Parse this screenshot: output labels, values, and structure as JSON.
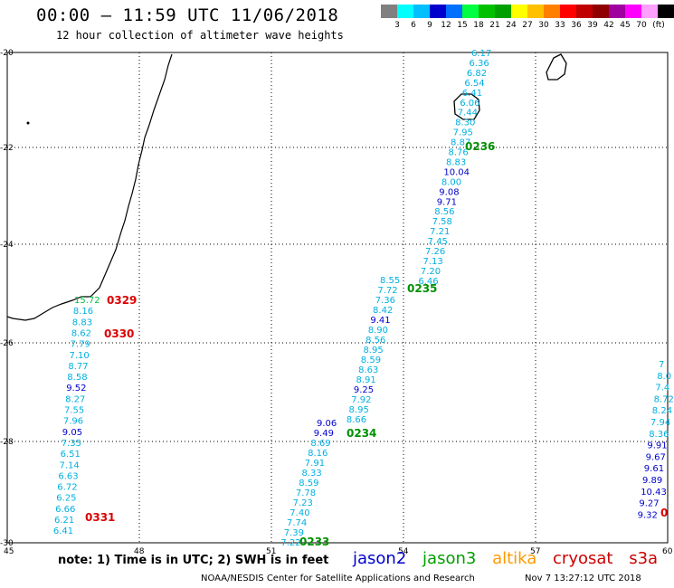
{
  "title": "00:00 – 11:59 UTC 11/06/2018",
  "subtitle": "12 hour collection of altimeter wave heights",
  "scale": {
    "unit": "(ft)",
    "colors": [
      "#808080",
      "#00ffff",
      "#00bfff",
      "#0000cd",
      "#0070ff",
      "#00ff40",
      "#00c000",
      "#00a000",
      "#ffff00",
      "#ffc000",
      "#ff8000",
      "#ff0000",
      "#c00000",
      "#900000",
      "#a000a0",
      "#ff00ff",
      "#ffa0ff",
      "#000000"
    ],
    "labels": [
      "3",
      "6",
      "9",
      "12",
      "15",
      "18",
      "21",
      "24",
      "27",
      "30",
      "33",
      "36",
      "39",
      "42",
      "45",
      "70"
    ]
  },
  "map": {
    "lon_ticks": [
      "45",
      "48",
      "51",
      "54",
      "57",
      "60"
    ],
    "lat_ticks": [
      "-20",
      "-22",
      "-24",
      "-26",
      "-28",
      "-30"
    ]
  },
  "tracks": {
    "t0236": {
      "time": "0236",
      "values": [
        "6.17",
        "6.36",
        "6.82",
        "6.54",
        "6.41",
        "6.06",
        "7.44",
        "8.30",
        "7.95",
        "8.87",
        "8.76",
        "8.83",
        "10.04",
        "8.00",
        "9.08",
        "9.71",
        "8.56",
        "7.58",
        "7.21",
        "7.45",
        "7.26",
        "7.13",
        "7.20",
        "6.46"
      ]
    },
    "t0235": {
      "time": "0235",
      "values": [
        "8.55",
        "7.72",
        "7.36",
        "8.42",
        "9.41",
        "8.90",
        "8.56",
        "8.95",
        "8.59",
        "8.63",
        "8.91",
        "9.25",
        "7.92",
        "8.95",
        "8.66"
      ]
    },
    "t0234": {
      "time": "0234",
      "values": [
        "9.06",
        "9.49",
        "8.69",
        "8.16",
        "7.91",
        "8.33",
        "8.59",
        "7.78",
        "7.23",
        "7.40",
        "7.74",
        "7.39",
        "7.22"
      ]
    },
    "t0233": {
      "time": "0233"
    },
    "t0329": {
      "time": "0329",
      "values": [
        "15.72",
        "8.16",
        "8.83",
        "8.62",
        "7.79",
        "7.10",
        "8.77",
        "8.58",
        "9.52",
        "8.27",
        "7.55",
        "7.96",
        "9.05",
        "7.35",
        "6.51",
        "7.14",
        "6.63",
        "6.72",
        "6.25",
        "6.66",
        "6.21",
        "6.41"
      ]
    },
    "t0330": {
      "time": "0330"
    },
    "t0331": {
      "time": "0331"
    },
    "east": {
      "values": [
        "7",
        "8.0",
        "7.4",
        "8.72",
        "8.24",
        "7.94",
        "8.36",
        "9.91",
        "9.67",
        "9.61",
        "9.89",
        "10.43",
        "9.27",
        "9.32"
      ],
      "time_partial": "0"
    }
  },
  "note": "note: 1) Time is in UTC; 2) SWH is in feet",
  "legend": {
    "jason2": "jason2",
    "jason3": "jason3",
    "altika": "altika",
    "cryosat": "cryosat",
    "s3a": "s3a"
  },
  "footer": {
    "org": "NOAA/NESDIS Center for Satellite Applications and Research",
    "timestamp": "Nov  7 13:27:12 UTC 2018"
  }
}
